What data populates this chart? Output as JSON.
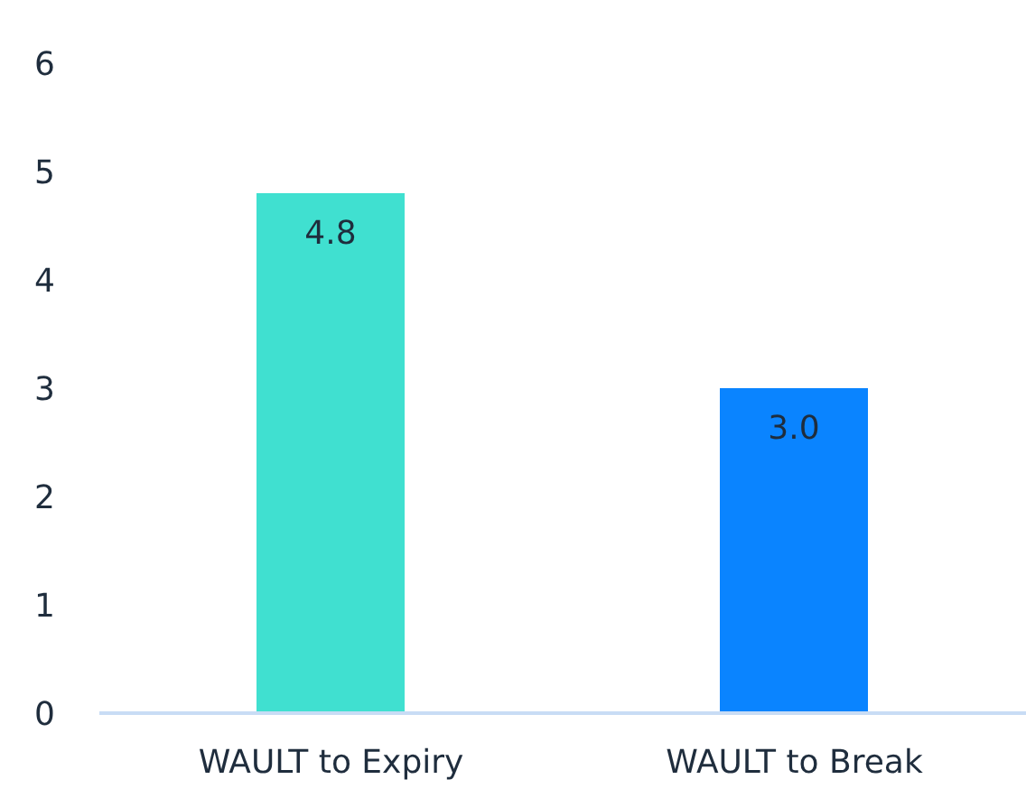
{
  "chart_data": {
    "type": "bar",
    "categories": [
      "WAULT to Expiry",
      "WAULT to Break"
    ],
    "values": [
      4.8,
      3.0
    ],
    "colors": [
      "#40e0d0",
      "#0a84ff"
    ],
    "value_labels": [
      "4.8",
      "3.0"
    ],
    "ylim": [
      0,
      6
    ],
    "yticks": [
      0,
      1,
      2,
      3,
      4,
      5,
      6
    ],
    "grid": false
  }
}
